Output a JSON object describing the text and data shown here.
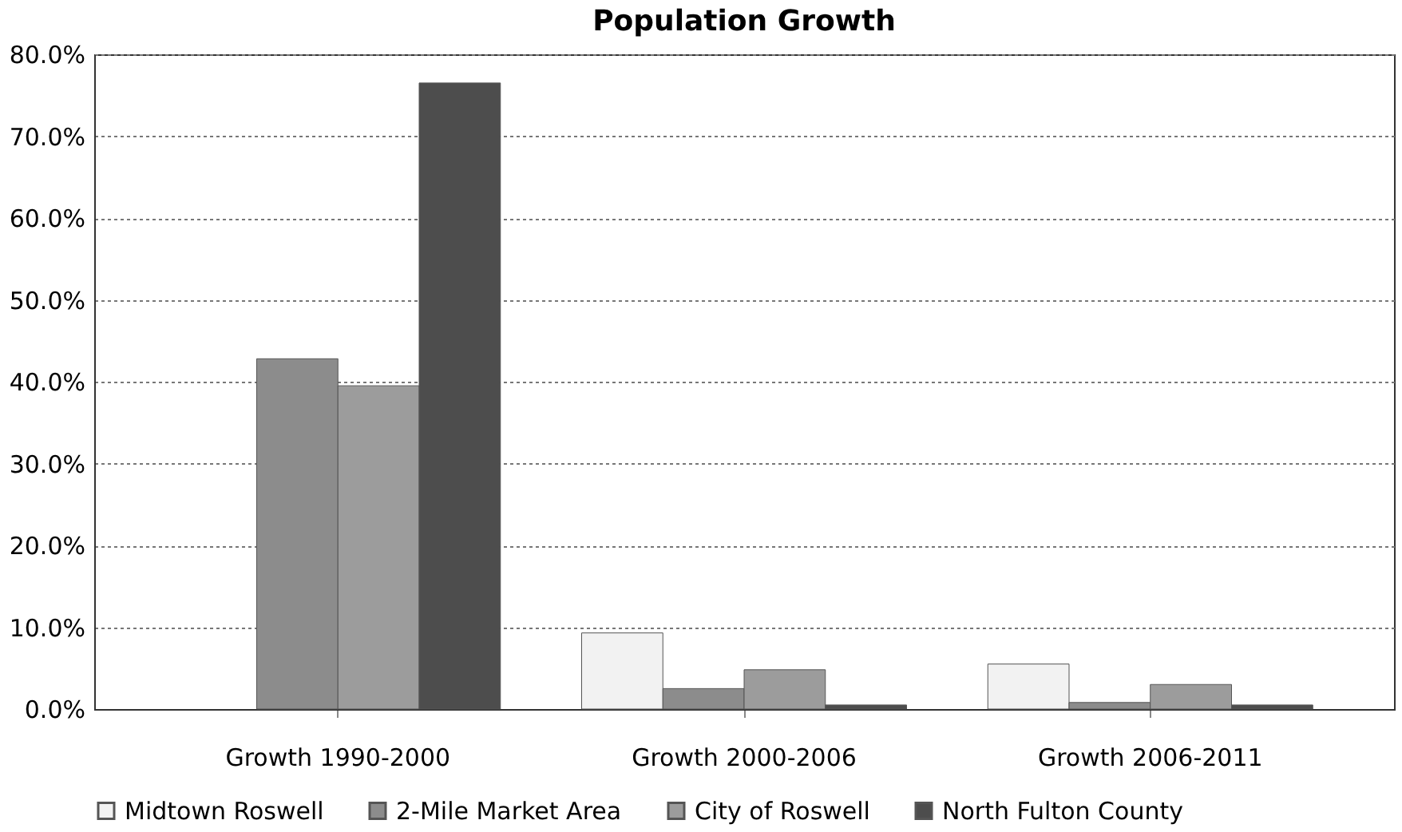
{
  "chart_data": {
    "type": "bar",
    "title": "Population Growth",
    "categories": [
      "Growth 1990-2000",
      "Growth 2000-2006",
      "Growth 2006-2011"
    ],
    "series": [
      {
        "name": "Midtown Roswell",
        "color": "#f2f2f2",
        "values": [
          null,
          9.3,
          5.5
        ]
      },
      {
        "name": "2-Mile Market Area",
        "color": "#8c8c8c",
        "values": [
          42.8,
          2.5,
          0.8
        ]
      },
      {
        "name": "City of Roswell",
        "color": "#9c9c9c",
        "values": [
          39.5,
          4.8,
          3.0
        ]
      },
      {
        "name": "North Fulton County",
        "color": "#4d4d4d",
        "values": [
          76.5,
          0.5,
          0.5
        ]
      }
    ],
    "ylim": [
      0,
      80
    ],
    "yticks": [
      {
        "value": 0,
        "label": "0.0%"
      },
      {
        "value": 10,
        "label": "10.0%"
      },
      {
        "value": 20,
        "label": "20.0%"
      },
      {
        "value": 30,
        "label": "30.0%"
      },
      {
        "value": 40,
        "label": "40.0%"
      },
      {
        "value": 50,
        "label": "50.0%"
      },
      {
        "value": 60,
        "label": "60.0%"
      },
      {
        "value": 70,
        "label": "70.0%"
      },
      {
        "value": 80,
        "label": "80.0%"
      }
    ],
    "grid": "y",
    "legend": "bottom"
  }
}
